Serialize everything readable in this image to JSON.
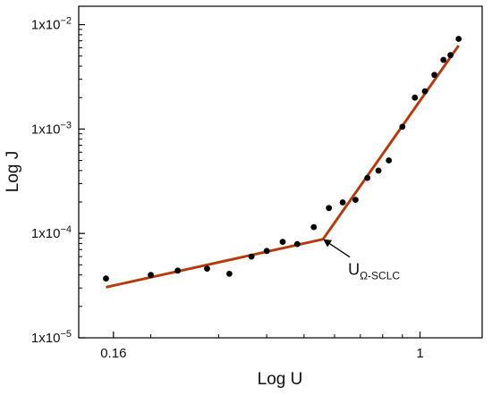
{
  "chart_data": {
    "type": "scatter",
    "title": "",
    "xlabel": "Log U",
    "ylabel": "Log J",
    "x_scale": "log",
    "y_scale": "log",
    "xlim": [
      0.13,
      1.45
    ],
    "ylim": [
      1e-05,
      0.015
    ],
    "x_ticks": [
      {
        "value": 0.16,
        "label": "0.16"
      },
      {
        "value": 1,
        "label": "1"
      }
    ],
    "y_ticks": [
      {
        "value": 1e-05,
        "base": "1x10",
        "exp": "−5"
      },
      {
        "value": 0.0001,
        "base": "1x10",
        "exp": "−4"
      },
      {
        "value": 0.001,
        "base": "1x10",
        "exp": "−3"
      },
      {
        "value": 0.01,
        "base": "1x10",
        "exp": "−2"
      }
    ],
    "grid": false,
    "series": [
      {
        "kind": "points",
        "color": "#000000",
        "points": [
          {
            "x": 0.153,
            "y": 3.7e-05
          },
          {
            "x": 0.2,
            "y": 4e-05
          },
          {
            "x": 0.235,
            "y": 4.4e-05
          },
          {
            "x": 0.28,
            "y": 4.6e-05
          },
          {
            "x": 0.32,
            "y": 4.1e-05
          },
          {
            "x": 0.365,
            "y": 6e-05
          },
          {
            "x": 0.4,
            "y": 6.8e-05
          },
          {
            "x": 0.44,
            "y": 8.3e-05
          },
          {
            "x": 0.48,
            "y": 7.9e-05
          },
          {
            "x": 0.53,
            "y": 0.000115
          },
          {
            "x": 0.58,
            "y": 0.000175
          },
          {
            "x": 0.63,
            "y": 0.000198
          },
          {
            "x": 0.68,
            "y": 0.00021
          },
          {
            "x": 0.73,
            "y": 0.00034
          },
          {
            "x": 0.78,
            "y": 0.0004
          },
          {
            "x": 0.83,
            "y": 0.0005
          },
          {
            "x": 0.9,
            "y": 0.00105
          },
          {
            "x": 0.97,
            "y": 0.002
          },
          {
            "x": 1.03,
            "y": 0.0023
          },
          {
            "x": 1.09,
            "y": 0.0033
          },
          {
            "x": 1.15,
            "y": 0.0046
          },
          {
            "x": 1.2,
            "y": 0.0051
          },
          {
            "x": 1.26,
            "y": 0.0073
          }
        ]
      },
      {
        "kind": "fit",
        "color": "#e41a1c",
        "outline_color": "#7a6a00",
        "points": [
          {
            "x": 0.153,
            "y": 3.05e-05
          },
          {
            "x": 0.56,
            "y": 8.8e-05
          }
        ]
      },
      {
        "kind": "fit",
        "color": "#e41a1c",
        "outline_color": "#7a6a00",
        "points": [
          {
            "x": 0.56,
            "y": 8.8e-05
          },
          {
            "x": 1.26,
            "y": 0.0063
          }
        ]
      }
    ],
    "annotation": {
      "text": "U",
      "subscript": "Ω-SCLC",
      "x": 0.56,
      "y": 8.8e-05
    }
  }
}
